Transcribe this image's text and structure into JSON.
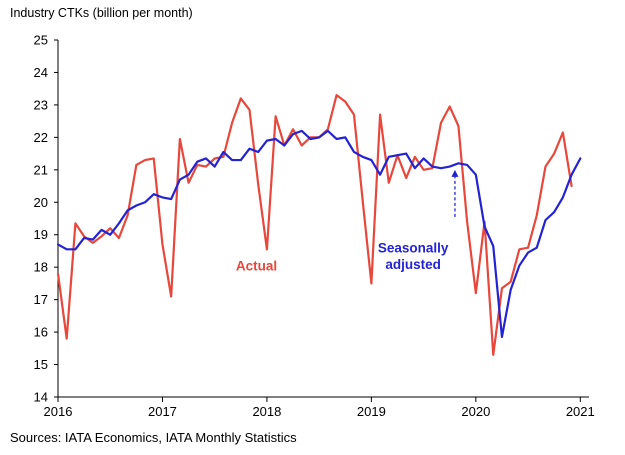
{
  "chart_data": {
    "type": "line",
    "title": "",
    "ylabel": "Industry CTKs (billion per month)",
    "xlabel": "",
    "ylim": [
      14,
      25
    ],
    "yticks": [
      14,
      15,
      16,
      17,
      18,
      19,
      20,
      21,
      22,
      23,
      24,
      25
    ],
    "xlim": [
      2016,
      2021.0833
    ],
    "xticks": [
      2016,
      2017,
      2018,
      2019,
      2020,
      2021
    ],
    "xtick_labels": [
      "2016",
      "2017",
      "2018",
      "2019",
      "2020",
      "2021"
    ],
    "grid": false,
    "source": "Sources: IATA Economics, IATA Monthly Statistics",
    "annotations": [
      {
        "text": "Actual",
        "x": 2017.9,
        "y": 17.9,
        "color": "#e8473b"
      },
      {
        "text": "Seasonally",
        "x": 2019.4,
        "y": 18.45,
        "color": "#2323d4"
      },
      {
        "text": "adjusted",
        "x": 2019.4,
        "y": 17.95,
        "color": "#2323d4"
      },
      {
        "type": "arrow",
        "x": 2019.8,
        "y_from": 19.55,
        "y_to": 21.0,
        "color": "#2323d4"
      }
    ],
    "series": [
      {
        "name": "Actual",
        "color": "#e8473b",
        "x_start": 2016.0,
        "step_months": 1,
        "values": [
          17.8,
          15.8,
          19.35,
          18.95,
          18.75,
          18.95,
          19.2,
          18.9,
          19.6,
          21.15,
          21.3,
          21.35,
          18.7,
          17.1,
          21.95,
          20.6,
          21.15,
          21.1,
          21.35,
          21.4,
          22.45,
          23.2,
          22.85,
          20.55,
          18.55,
          22.65,
          21.75,
          22.25,
          21.75,
          22.0,
          22.0,
          22.25,
          23.3,
          23.1,
          22.7,
          20.05,
          17.5,
          22.7,
          20.6,
          21.45,
          20.75,
          21.4,
          21.0,
          21.05,
          22.45,
          22.95,
          22.35,
          19.4,
          17.2,
          19.4,
          15.3,
          17.35,
          17.55,
          18.55,
          18.6,
          19.6,
          21.1,
          21.5,
          22.15,
          20.5
        ]
      },
      {
        "name": "Seasonally adjusted",
        "color": "#2323d4",
        "x_start": 2016.0,
        "step_months": 1,
        "values": [
          18.7,
          18.55,
          18.55,
          18.9,
          18.85,
          19.15,
          19.0,
          19.35,
          19.75,
          19.9,
          20.0,
          20.25,
          20.15,
          20.1,
          20.7,
          20.85,
          21.25,
          21.35,
          21.1,
          21.55,
          21.3,
          21.3,
          21.65,
          21.55,
          21.9,
          21.95,
          21.75,
          22.1,
          22.2,
          21.95,
          22.0,
          22.2,
          21.95,
          22.0,
          21.55,
          21.4,
          21.3,
          20.85,
          21.4,
          21.45,
          21.5,
          21.05,
          21.35,
          21.1,
          21.05,
          21.1,
          21.2,
          21.15,
          20.85,
          19.25,
          18.65,
          15.85,
          17.3,
          18.05,
          18.45,
          18.6,
          19.45,
          19.7,
          20.15,
          20.85,
          21.35
        ]
      }
    ]
  }
}
